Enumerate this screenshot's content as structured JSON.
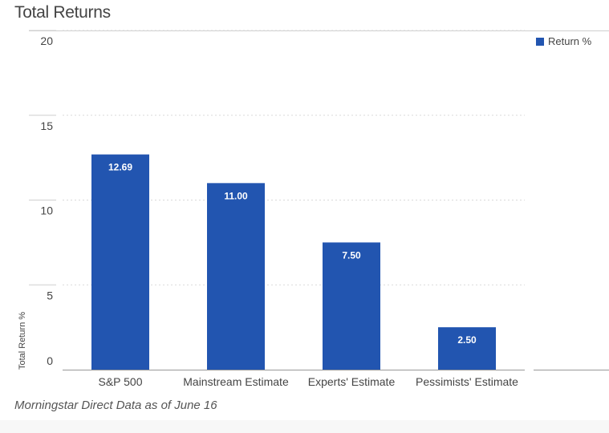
{
  "header": {
    "title": "Total Returns"
  },
  "legend": {
    "label": "Return %"
  },
  "footnote": "Morningstar Direct Data as of June 16",
  "colors": {
    "bar": "#2255b0",
    "grid": "#d9d9d9",
    "axis": "#999999",
    "label_on_bar": "#ffffff"
  },
  "chart_data": {
    "type": "bar",
    "title": "Total Returns",
    "categories": [
      "S&P 500",
      "Mainstream Estimate",
      "Experts' Estimate",
      "Pessimists' Estimate"
    ],
    "series": [
      {
        "name": "Return %",
        "values": [
          12.69,
          11.0,
          7.5,
          2.5
        ]
      }
    ],
    "data_labels": [
      "12.69",
      "11.00",
      "7.50",
      "2.50"
    ],
    "xlabel": "",
    "ylabel": "Total Return %",
    "ylim": [
      0,
      20
    ],
    "yticks": [
      0,
      5,
      10,
      15,
      20
    ],
    "grid": true,
    "legend_position": "top-right"
  }
}
